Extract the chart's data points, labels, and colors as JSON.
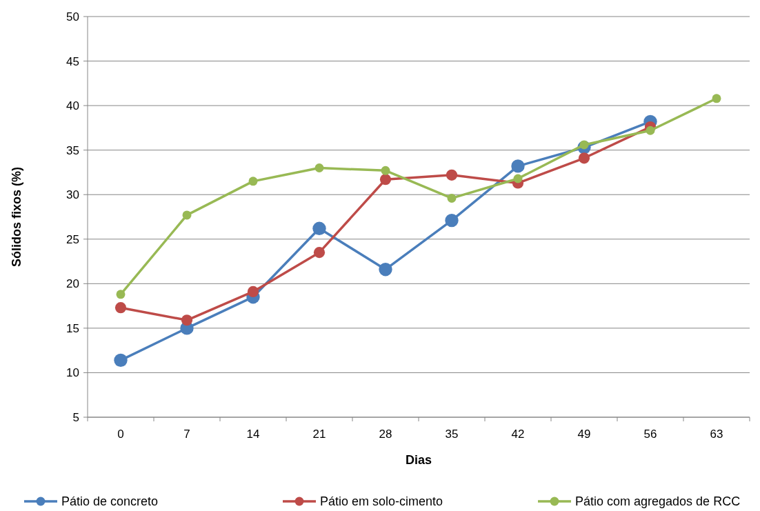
{
  "chart_data": {
    "type": "line",
    "xlabel": "Dias",
    "ylabel": "Sólidos fixos (%)",
    "categories": [
      "0",
      "7",
      "14",
      "21",
      "28",
      "35",
      "42",
      "49",
      "56",
      "63"
    ],
    "series": [
      {
        "name": "Pátio de concreto",
        "color": "#4a7ebb",
        "values": [
          11.4,
          15.0,
          18.5,
          26.2,
          21.6,
          27.1,
          33.2,
          35.3,
          38.2,
          null
        ]
      },
      {
        "name": "Pátio em solo-cimento",
        "color": "#be4b48",
        "values": [
          17.3,
          15.9,
          19.1,
          23.5,
          31.7,
          32.2,
          31.3,
          34.1,
          37.6,
          null
        ]
      },
      {
        "name": "Pátio com agregados de RCC",
        "color": "#98b954",
        "values": [
          18.8,
          27.7,
          31.5,
          33.0,
          32.7,
          29.6,
          31.8,
          35.6,
          37.2,
          40.8
        ]
      }
    ],
    "ylim": [
      5,
      50
    ],
    "yticks": [
      5,
      10,
      15,
      20,
      25,
      30,
      35,
      40,
      45,
      50
    ],
    "grid": "y",
    "legend": "bottom",
    "marker": "circle",
    "line_style": "solid"
  }
}
